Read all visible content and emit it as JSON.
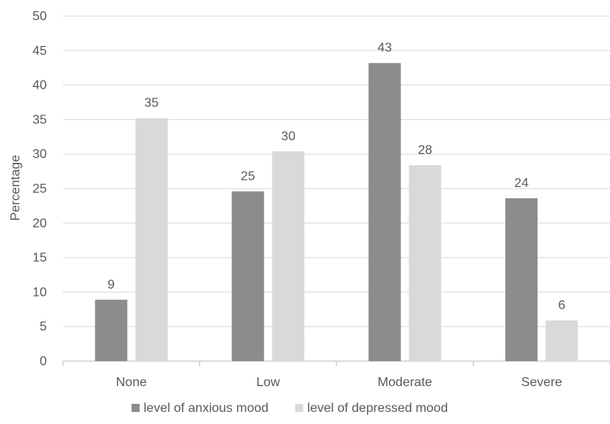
{
  "chart_data": {
    "type": "bar",
    "title": "",
    "xlabel": "",
    "ylabel": "Percentage",
    "ylim": [
      0,
      50
    ],
    "yticks": [
      0,
      5,
      10,
      15,
      20,
      25,
      30,
      35,
      40,
      45,
      50
    ],
    "categories": [
      "None",
      "Low",
      "Moderate",
      "Severe"
    ],
    "series": [
      {
        "name": "level of anxious mood",
        "color": "#8c8c8e",
        "values": [
          8.9,
          24.6,
          43.2,
          23.6
        ],
        "labels": [
          "9",
          "25",
          "43",
          "24"
        ]
      },
      {
        "name": "level of depressed mood",
        "color": "#d9d9db",
        "values": [
          35.2,
          30.4,
          28.4,
          5.9
        ],
        "labels": [
          "35",
          "30",
          "28",
          "6"
        ]
      }
    ],
    "grid": true,
    "legend_position": "bottom"
  }
}
